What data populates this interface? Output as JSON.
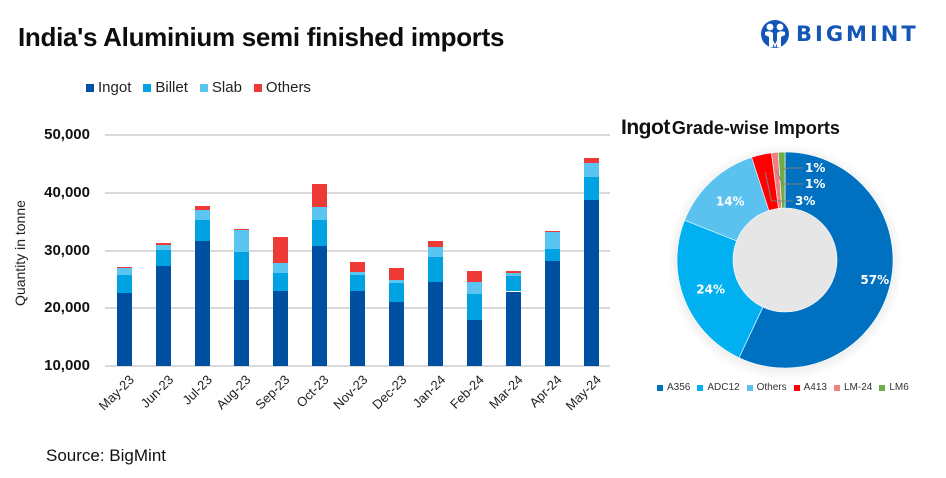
{
  "header": {
    "title": "India's Aluminium semi finished imports",
    "logo_text": "BIGMINT",
    "logo_color": "#1356b5"
  },
  "footer": {
    "source": "Source: BigMint"
  },
  "chart_data": [
    {
      "type": "bar",
      "stacked": true,
      "title": "India's Aluminium semi finished imports",
      "xlabel": "",
      "ylabel": "Quantity in tonne",
      "ylim": [
        10000,
        50000
      ],
      "yticks": [
        "50,000",
        "40,000",
        "30,000",
        "20,000",
        "10,000"
      ],
      "ytick_values": [
        50000,
        40000,
        30000,
        20000,
        10000
      ],
      "grid": true,
      "legend_position": "top-left",
      "categories": [
        "May-23",
        "Jun-23",
        "Jul-23",
        "Aug-23",
        "Sep-23",
        "Oct-23",
        "Nov-23",
        "Dec-23",
        "Jan-24",
        "Feb-24",
        "Mar-24",
        "Apr-24",
        "May-24"
      ],
      "series": [
        {
          "name": "Ingot",
          "color": "#0050A2",
          "values": [
            22700,
            27350,
            31700,
            24900,
            23000,
            30800,
            23000,
            21000,
            24600,
            18000,
            22900,
            28200,
            38800
          ]
        },
        {
          "name": "Billet",
          "color": "#00A2E1",
          "values": [
            3100,
            2750,
            3600,
            4900,
            3100,
            4500,
            2800,
            3400,
            4300,
            4500,
            2700,
            2100,
            3900
          ]
        },
        {
          "name": "Slab",
          "color": "#5BC5F2",
          "values": [
            1200,
            900,
            1700,
            3800,
            1800,
            2300,
            500,
            500,
            1700,
            2100,
            500,
            2900,
            2500
          ]
        },
        {
          "name": "Others",
          "color": "#EE3A36",
          "values": [
            200,
            300,
            700,
            200,
            4500,
            3900,
            1700,
            2100,
            1100,
            1900,
            400,
            200,
            800
          ]
        }
      ]
    },
    {
      "type": "pie",
      "donut": true,
      "title": "Ingot Grade-wise Imports",
      "title_part1": "Ingot",
      "title_part2": "Grade-wise Imports",
      "legend_position": "bottom",
      "categories": [
        "A356",
        "ADC12",
        "Others",
        "A413",
        "LM-24",
        "LM6"
      ],
      "values": [
        57,
        24,
        14,
        3,
        1,
        1
      ],
      "labels": [
        "57%",
        "24%",
        "14%",
        "3%",
        "1%",
        "1%"
      ],
      "colors": [
        "#0070C0",
        "#00B0F0",
        "#5BC2F0",
        "#FF0000",
        "#F08080",
        "#70AD47"
      ]
    }
  ]
}
